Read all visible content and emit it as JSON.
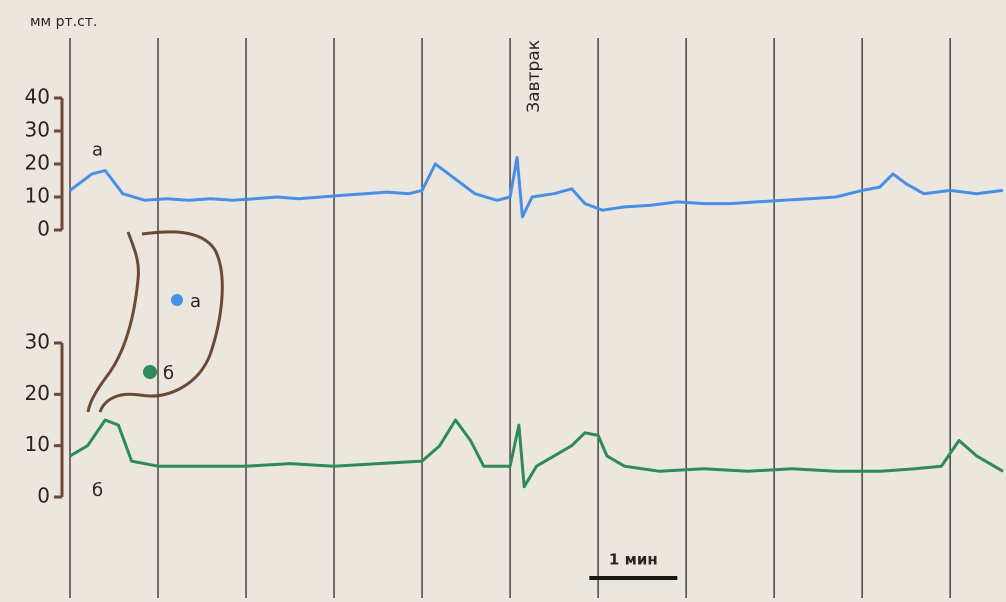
{
  "chart_data": [
    {
      "type": "line",
      "ylabel": "мм рт.ст.",
      "ylim": [
        0,
        40
      ],
      "yticks": [
        0,
        10,
        20,
        30,
        40
      ],
      "xlim": [
        0,
        10.6
      ],
      "xticks": [
        0,
        1,
        2,
        3,
        4,
        5,
        6,
        7,
        8,
        9,
        10
      ],
      "grid": true,
      "annotation": {
        "text": "Завтрак",
        "x": 5.1
      },
      "scalebar": {
        "label": "1 мин",
        "x": 5.9,
        "length": 1
      },
      "x": [
        0,
        0.25,
        0.4,
        0.6,
        0.85,
        1.1,
        1.35,
        1.6,
        1.85,
        2.1,
        2.35,
        2.6,
        2.85,
        3.1,
        3.35,
        3.6,
        3.85,
        4.0,
        4.15,
        4.25,
        4.4,
        4.6,
        4.85,
        5.0,
        5.08,
        5.14,
        5.25,
        5.5,
        5.7,
        5.85,
        6.05,
        6.3,
        6.6,
        6.9,
        7.2,
        7.5,
        7.8,
        8.1,
        8.4,
        8.7,
        9.0,
        9.2,
        9.35,
        9.5,
        9.7,
        10.0,
        10.3,
        10.6
      ],
      "series": [
        {
          "name": "а",
          "color": "#4a8fe6",
          "values": [
            12,
            17,
            18,
            11,
            9,
            9.5,
            9,
            9.5,
            9,
            9.5,
            10,
            9.5,
            10,
            10.5,
            11,
            11.5,
            11,
            12,
            20,
            18,
            15,
            11,
            9,
            10,
            22,
            4,
            10,
            11,
            12.5,
            8,
            6,
            7,
            7.5,
            8.5,
            8,
            8,
            8.5,
            9,
            9.5,
            10,
            12,
            13,
            17,
            14,
            11,
            12,
            11,
            12
          ]
        }
      ]
    },
    {
      "type": "line",
      "ylim": [
        0,
        30
      ],
      "yticks": [
        0,
        10,
        20,
        30
      ],
      "xlim": [
        0,
        10.6
      ],
      "x": [
        0,
        0.2,
        0.4,
        0.55,
        0.7,
        1.0,
        1.5,
        2.0,
        2.5,
        3.0,
        3.5,
        4.0,
        4.2,
        4.38,
        4.55,
        4.7,
        5.0,
        5.1,
        5.16,
        5.3,
        5.5,
        5.7,
        5.85,
        6.0,
        6.1,
        6.3,
        6.7,
        7.2,
        7.7,
        8.2,
        8.7,
        9.2,
        9.6,
        9.9,
        10.1,
        10.3,
        10.6
      ],
      "series": [
        {
          "name": "б",
          "color": "#2e8a5a",
          "values": [
            8,
            10,
            15,
            14,
            7,
            6,
            6,
            6,
            6.5,
            6,
            6.5,
            7,
            10,
            15,
            11,
            6,
            6,
            14,
            2,
            6,
            8,
            10,
            12.5,
            12,
            8,
            6,
            5,
            5.5,
            5,
            5.5,
            5,
            5,
            5.5,
            6,
            11,
            8,
            5
          ]
        }
      ],
      "inset": {
        "labels": [
          "а",
          "б"
        ]
      }
    }
  ]
}
